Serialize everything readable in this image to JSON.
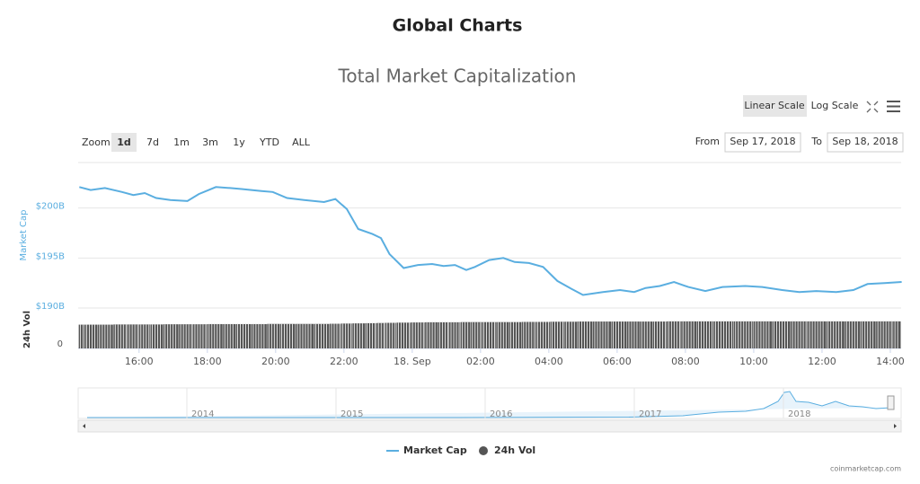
{
  "header": "Global Charts",
  "controls": {
    "scales": [
      "Linear Scale",
      "Log Scale"
    ],
    "zoom_label": "Zoom",
    "zoom": [
      "1d",
      "7d",
      "1m",
      "3m",
      "1y",
      "YTD",
      "ALL"
    ],
    "from_label": "From",
    "from": "Sep 17, 2018",
    "to_label": "To",
    "to": "Sep 18, 2018"
  },
  "navigator": {
    "labels": [
      "2014",
      "2015",
      "2016",
      "2017",
      "2018"
    ]
  },
  "credit": "coinmarketcap.com",
  "chart_data": {
    "type": "line",
    "title": "Total Market Capitalization",
    "ylabel": "Market Cap",
    "y2label": "24h Vol",
    "x": [
      "2018-09-17T14:15",
      "2018-09-17T14:35",
      "2018-09-17T15:00",
      "2018-09-17T15:30",
      "2018-09-17T15:50",
      "2018-09-17T16:10",
      "2018-09-17T16:30",
      "2018-09-17T16:55",
      "2018-09-17T17:25",
      "2018-09-17T17:45",
      "2018-09-17T18:15",
      "2018-09-17T18:40",
      "2018-09-17T19:00",
      "2018-09-17T19:35",
      "2018-09-17T19:55",
      "2018-09-17T20:20",
      "2018-09-17T20:50",
      "2018-09-17T21:25",
      "2018-09-17T21:45",
      "2018-09-17T22:05",
      "2018-09-17T22:25",
      "2018-09-17T22:50",
      "2018-09-17T23:05",
      "2018-09-17T23:20",
      "2018-09-17T23:45",
      "2018-09-18T00:10",
      "2018-09-18T00:35",
      "2018-09-18T00:55",
      "2018-09-18T01:15",
      "2018-09-18T01:35",
      "2018-09-18T01:50",
      "2018-09-18T02:15",
      "2018-09-18T02:40",
      "2018-09-18T03:00",
      "2018-09-18T03:25",
      "2018-09-18T03:50",
      "2018-09-18T04:15",
      "2018-09-18T04:40",
      "2018-09-18T05:00",
      "2018-09-18T05:35",
      "2018-09-18T06:05",
      "2018-09-18T06:30",
      "2018-09-18T06:50",
      "2018-09-18T07:15",
      "2018-09-18T07:40",
      "2018-09-18T08:05",
      "2018-09-18T08:35",
      "2018-09-18T09:05",
      "2018-09-18T09:45",
      "2018-09-18T10:15",
      "2018-09-18T10:50",
      "2018-09-18T11:20",
      "2018-09-18T11:50",
      "2018-09-18T12:25",
      "2018-09-18T12:55",
      "2018-09-18T13:20",
      "2018-09-18T13:50",
      "2018-09-18T14:20"
    ],
    "series": [
      {
        "name": "Market Cap",
        "color": "#5aaee0",
        "values": [
          202.1,
          201.8,
          202.0,
          201.6,
          201.3,
          201.5,
          201.0,
          200.8,
          200.7,
          201.4,
          202.1,
          202.0,
          201.9,
          201.7,
          201.6,
          201.0,
          200.8,
          200.6,
          200.9,
          199.9,
          197.9,
          197.4,
          197.0,
          195.4,
          194.0,
          194.3,
          194.4,
          194.2,
          194.3,
          193.8,
          194.1,
          194.8,
          195.0,
          194.6,
          194.5,
          194.1,
          192.7,
          191.9,
          191.3,
          191.6,
          191.8,
          191.6,
          192.0,
          192.2,
          192.6,
          192.1,
          191.7,
          192.1,
          192.2,
          192.1,
          191.8,
          191.6,
          191.7,
          191.6,
          191.8,
          192.4,
          192.5,
          192.6
        ]
      },
      {
        "name": "24h Vol",
        "color": "#555555",
        "axis": "y2",
        "values": [
          12.9,
          12.9,
          12.9,
          13.0,
          13.0,
          13.0,
          13.0,
          13.1,
          13.1,
          13.1,
          13.2,
          13.2,
          13.2,
          13.2,
          13.3,
          13.3,
          13.3,
          13.3,
          13.4,
          13.5,
          13.6,
          13.7,
          13.8,
          13.9,
          14.0,
          14.1,
          14.2,
          14.2,
          14.2,
          14.3,
          14.3,
          14.3,
          14.3,
          14.3,
          14.4,
          14.4,
          14.5,
          14.5,
          14.6,
          14.6,
          14.6,
          14.6,
          14.6,
          14.6,
          14.7,
          14.7,
          14.7,
          14.7,
          14.7,
          14.7,
          14.7,
          14.7,
          14.7,
          14.7,
          14.7,
          14.7,
          14.7,
          14.7
        ]
      }
    ],
    "xlim": [
      "2018-09-17T14:13",
      "2018-09-18T14:19"
    ],
    "xticks": [
      {
        "value": "2018-09-17T16:00",
        "label": "16:00"
      },
      {
        "value": "2018-09-17T18:00",
        "label": "18:00"
      },
      {
        "value": "2018-09-17T20:00",
        "label": "20:00"
      },
      {
        "value": "2018-09-17T22:00",
        "label": "22:00"
      },
      {
        "value": "2018-09-18T00:00",
        "label": "18. Sep"
      },
      {
        "value": "2018-09-18T02:00",
        "label": "02:00"
      },
      {
        "value": "2018-09-18T04:00",
        "label": "04:00"
      },
      {
        "value": "2018-09-18T06:00",
        "label": "06:00"
      },
      {
        "value": "2018-09-18T08:00",
        "label": "08:00"
      },
      {
        "value": "2018-09-18T10:00",
        "label": "10:00"
      },
      {
        "value": "2018-09-18T12:00",
        "label": "12:00"
      },
      {
        "value": "2018-09-18T14:00",
        "label": "14:00"
      }
    ],
    "ylim": [
      189.73,
      204.55
    ],
    "yticks": [
      {
        "value": 190,
        "label": "$190B"
      },
      {
        "value": 195,
        "label": "$195B"
      },
      {
        "value": 200,
        "label": "$200B"
      }
    ],
    "y2lim": [
      0,
      20
    ],
    "y2ticks": [
      0
    ],
    "grid": true,
    "legend": "bottom"
  }
}
